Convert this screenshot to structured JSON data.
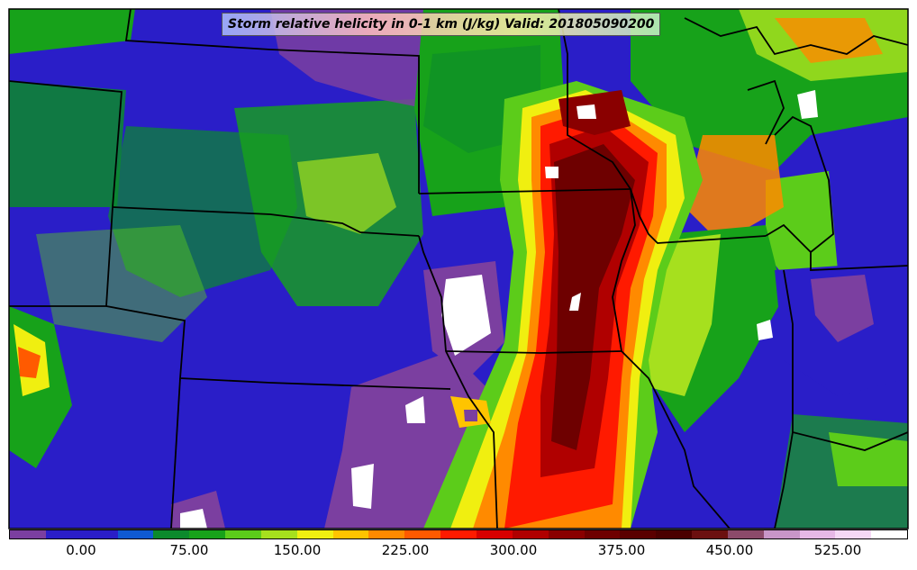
{
  "title": "Storm relative helicity in 0-1 km (J/kg) Valid: 201805090200",
  "colorbar": {
    "colors": [
      "#7b3fa0",
      "#2a1ec8",
      "#2a1ec8",
      "#0f5ad2",
      "#0c8a2c",
      "#17a21a",
      "#5ccc1a",
      "#a6e01e",
      "#f0ef10",
      "#ffc400",
      "#ff8a00",
      "#ff5a00",
      "#ff1a00",
      "#d80000",
      "#b00000",
      "#8a0000",
      "#6e0000",
      "#5a0000",
      "#4a0000",
      "#6b1010",
      "#8c4a6a",
      "#c896c8",
      "#e6b8e6",
      "#f5d8f5",
      "#ffffff"
    ],
    "tick_labels": [
      "0.00",
      "75.00",
      "150.00",
      "225.00",
      "300.00",
      "375.00",
      "450.00",
      "525.00"
    ]
  },
  "map": {
    "field": "Storm relative helicity 0-1 km",
    "units": "J/kg",
    "valid": "201805090200",
    "max_region": "dark red / maroon band across central Iowa, northern Missouri and southern Minnesota",
    "palette": {
      "low": "#7b3fa0",
      "base": "#2a1ec8",
      "green": "#0c8a2c",
      "yellow": "#f0ef10",
      "orange": "#ff8a00",
      "red": "#d80000",
      "maroon": "#5a0000",
      "white": "#ffffff"
    }
  }
}
